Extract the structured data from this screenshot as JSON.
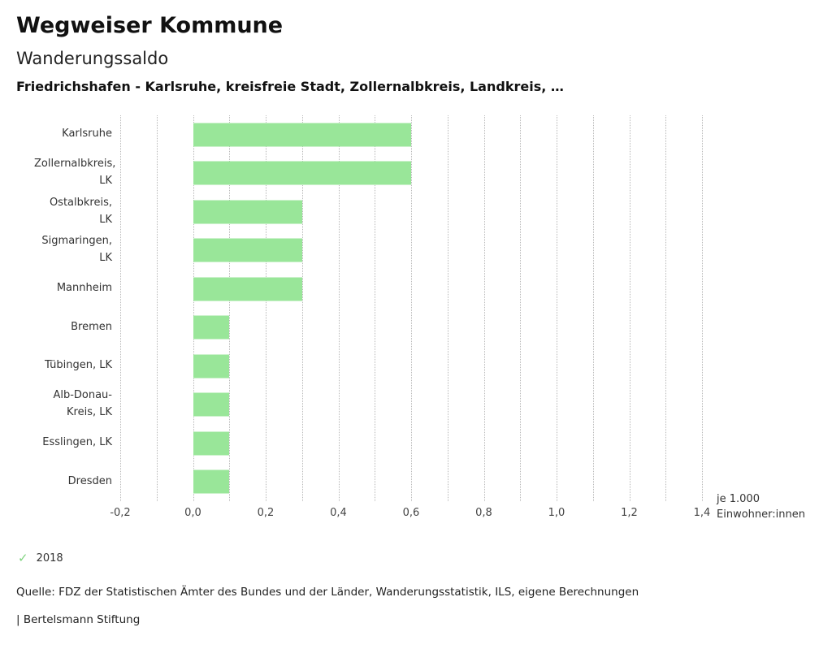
{
  "header": {
    "app_title": "Wegweiser Kommune",
    "chart_title": "Wanderungssaldo",
    "chart_subtitle": "Friedrichshafen - Karlsruhe, kreisfreie Stadt, Zollernalbkreis, Landkreis, …"
  },
  "chart_data": {
    "type": "bar",
    "orientation": "horizontal",
    "title": "Wanderungssaldo",
    "categories": [
      "Karlsruhe",
      "Zollernalbkreis, LK",
      "Ostalbkreis, LK",
      "Sigmaringen, LK",
      "Mannheim",
      "Bremen",
      "Tübingen, LK",
      "Alb-Donau-Kreis, LK",
      "Esslingen, LK",
      "Dresden"
    ],
    "series": [
      {
        "name": "2018",
        "values": [
          0.6,
          0.6,
          0.3,
          0.3,
          0.3,
          0.1,
          0.1,
          0.1,
          0.1,
          0.1
        ]
      }
    ],
    "xlim": [
      -0.2,
      1.4
    ],
    "grid_step": 0.1,
    "grid": true,
    "ticks": [
      {
        "value": -0.2,
        "label": "-0,2"
      },
      {
        "value": 0.0,
        "label": "0,0"
      },
      {
        "value": 0.2,
        "label": "0,2"
      },
      {
        "value": 0.4,
        "label": "0,4"
      },
      {
        "value": 0.6,
        "label": "0,6"
      },
      {
        "value": 0.8,
        "label": "0,8"
      },
      {
        "value": 1.0,
        "label": "1,0"
      },
      {
        "value": 1.2,
        "label": "1,2"
      },
      {
        "value": 1.4,
        "label": "1,4"
      }
    ],
    "bar_color": "#99e699",
    "unit_label": {
      "line1": "je 1.000",
      "line2": "Einwohner:innen"
    },
    "legend_position": "bottom-left"
  },
  "legend": {
    "items": [
      {
        "label": "2018",
        "checked": true,
        "check_color": "#7ed37e"
      }
    ]
  },
  "footer": {
    "source": "Quelle: FDZ der Statistischen Ämter des Bundes und der Länder, Wanderungsstatistik, ILS, eigene Berechnungen",
    "branding": "| Bertelsmann Stiftung"
  }
}
